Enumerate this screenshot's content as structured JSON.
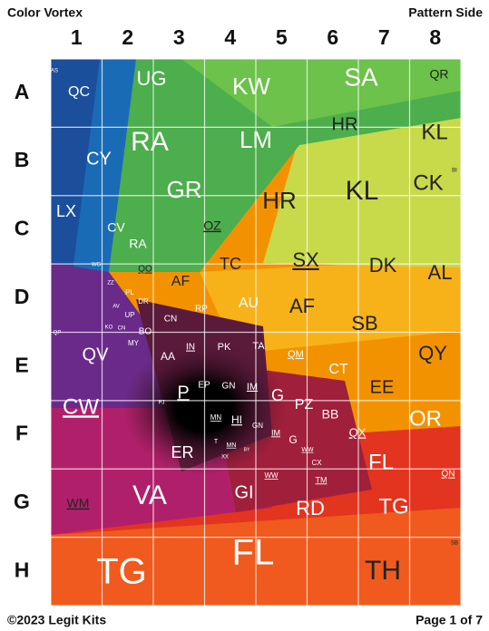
{
  "header": {
    "title": "Color Vortex",
    "side": "Pattern Side"
  },
  "columns": [
    "1",
    "2",
    "3",
    "4",
    "5",
    "6",
    "7",
    "8"
  ],
  "rows": [
    "A",
    "B",
    "C",
    "D",
    "E",
    "F",
    "G",
    "H"
  ],
  "labels": [
    "AS",
    "QC",
    "UG",
    "KW",
    "SA",
    "QR",
    "HR",
    "KL",
    "RA",
    "LM",
    "CY",
    "BI",
    "CK",
    "GR",
    "HR",
    "KL",
    "LX",
    "CV",
    "OZ",
    "RA",
    "TC",
    "SX",
    "DK",
    "AL",
    "WG",
    "QO",
    "ZZ",
    "AF",
    "PL",
    "DR",
    "AU",
    "AF",
    "AV",
    "RP",
    "UP",
    "CN",
    "SB",
    "QP",
    "KO",
    "CN",
    "BO",
    "MY",
    "QV",
    "IN",
    "PK",
    "TA",
    "QM",
    "QY",
    "AA",
    "CT",
    "EP",
    "GN",
    "IM",
    "EE",
    "P",
    "G",
    "CW",
    "PZ",
    "PJ",
    "BB",
    "MN",
    "HI",
    "OR",
    "GN",
    "IM",
    "QX",
    "G",
    "T",
    "MN",
    "BY",
    "WW",
    "ER",
    "XX",
    "CX",
    "FL",
    "QN",
    "WW",
    "TM",
    "GI",
    "VA",
    "WM",
    "RD",
    "TG",
    "SB",
    "FL",
    "TG",
    "TH"
  ],
  "footer": {
    "copyright": "©2023 Legit Kits",
    "page": "Page 1 of 7"
  }
}
